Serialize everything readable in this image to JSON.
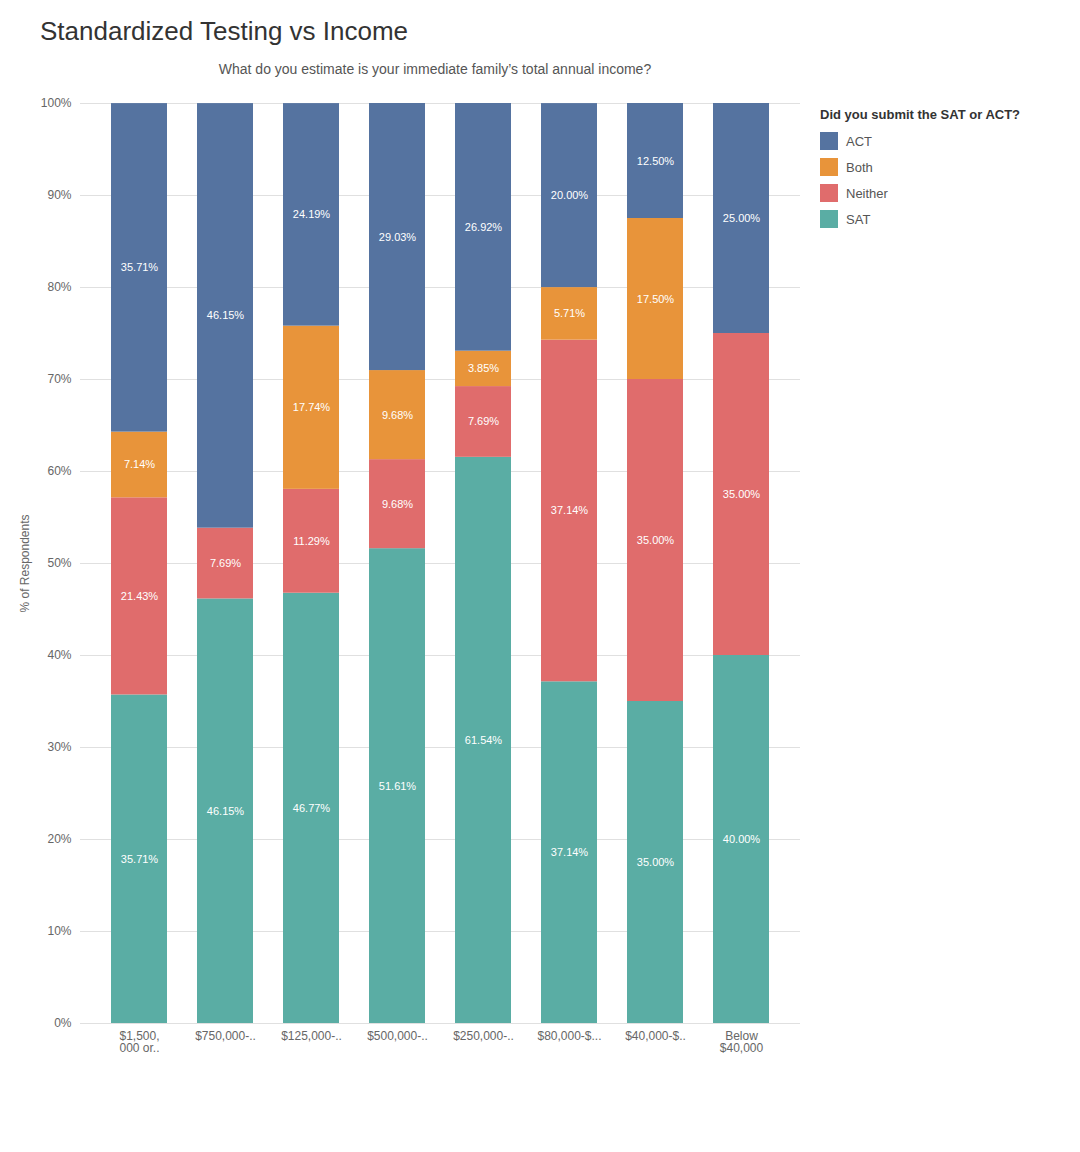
{
  "chart_data": {
    "type": "bar",
    "stacked": true,
    "title": "Standardized Testing vs Income",
    "subtitle": "What do you estimate is your immediate family’s total annual income?",
    "legend_title": "Did you submit the SAT or ACT?",
    "y_label": "% of Respondents",
    "categories": [
      "$1,500,\n000 or..",
      "$750,000-..",
      "$125,000-..",
      "$500,000-..",
      "$250,000-..",
      "$80,000-$...",
      "$40,000-$..",
      "Below\n$40,000"
    ],
    "series": [
      {
        "name": "SAT",
        "color": "#5aada4",
        "values": [
          35.71,
          46.15,
          46.77,
          51.61,
          61.54,
          37.14,
          35.0,
          40.0
        ],
        "value_labels": [
          "35.71%",
          "46.15%",
          "46.77%",
          "51.61%",
          "61.54%",
          "37.14%",
          "35.00%",
          "40.00%"
        ]
      },
      {
        "name": "Neither",
        "color": "#e06c6c",
        "values": [
          21.43,
          7.69,
          11.29,
          9.68,
          7.69,
          37.14,
          35.0,
          35.0
        ],
        "value_labels": [
          "21.43%",
          "7.69%",
          "11.29%",
          "9.68%",
          "7.69%",
          "37.14%",
          "35.00%",
          "35.00%"
        ]
      },
      {
        "name": "Both",
        "color": "#e8943a",
        "values": [
          7.14,
          0.0,
          17.74,
          9.68,
          3.85,
          5.71,
          17.5,
          0.0
        ],
        "value_labels": [
          "7.14%",
          null,
          "17.74%",
          "9.68%",
          "3.85%",
          "5.71%",
          "17.50%",
          null
        ]
      },
      {
        "name": "ACT",
        "color": "#5573a0",
        "values": [
          35.71,
          46.15,
          24.19,
          29.03,
          26.92,
          20.0,
          12.5,
          25.0
        ],
        "value_labels": [
          "35.71%",
          "46.15%",
          "24.19%",
          "29.03%",
          "26.92%",
          "20.00%",
          "12.50%",
          "25.00%"
        ]
      }
    ],
    "ylim": [
      0,
      100
    ],
    "yticks": [
      {
        "value": 0,
        "label": "0%"
      },
      {
        "value": 10,
        "label": "10%"
      },
      {
        "value": 20,
        "label": "20%"
      },
      {
        "value": 30,
        "label": "30%"
      },
      {
        "value": 40,
        "label": "40%"
      },
      {
        "value": 50,
        "label": "50%"
      },
      {
        "value": 60,
        "label": "60%"
      },
      {
        "value": 70,
        "label": "70%"
      },
      {
        "value": 80,
        "label": "80%"
      },
      {
        "value": 90,
        "label": "90%"
      },
      {
        "value": 100,
        "label": "100%"
      }
    ],
    "grid": true,
    "data_labels": true,
    "legend": "upper right"
  }
}
